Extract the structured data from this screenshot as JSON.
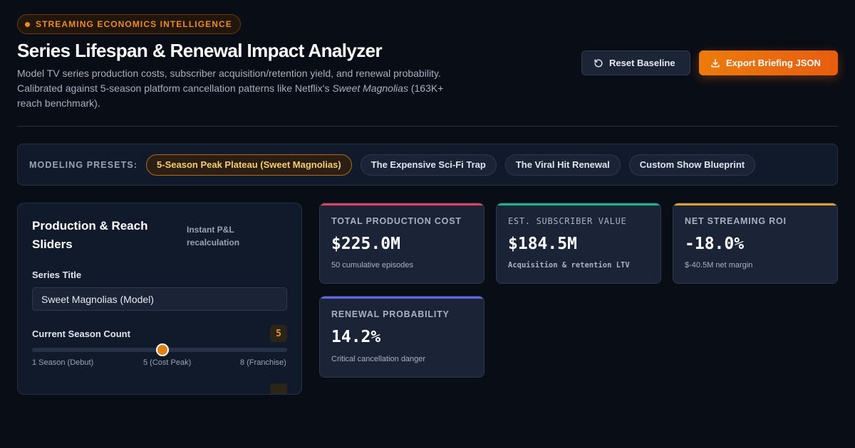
{
  "header": {
    "badge": "STREAMING ECONOMICS INTELLIGENCE",
    "title": "Series Lifespan & Renewal Impact Analyzer",
    "description_before": "Model TV series production costs, subscriber acquisition/retention yield, and renewal probability. Calibrated against 5-season platform cancellation patterns like Netflix's ",
    "description_em": "Sweet Magnolias",
    "description_after": " (163K+ reach benchmark).",
    "reset_label": "Reset Baseline",
    "export_label": "Export Briefing JSON"
  },
  "presets": {
    "label": "MODELING PRESETS:",
    "items": [
      {
        "label": "5-Season Peak Plateau (Sweet Magnolias)",
        "active": true
      },
      {
        "label": "The Expensive Sci-Fi Trap",
        "active": false
      },
      {
        "label": "The Viral Hit Renewal",
        "active": false
      },
      {
        "label": "Custom Show Blueprint",
        "active": false
      }
    ]
  },
  "controls": {
    "title": "Production & Reach Sliders",
    "note": "Instant P&L recalculation",
    "series_title_label": "Series Title",
    "series_title_value": "Sweet Magnolias (Model)",
    "season_label": "Current Season Count",
    "season_value": "5",
    "season_min": 1,
    "season_max": 8,
    "season_ticks": [
      "1 Season (Debut)",
      "5 (Cost Peak)",
      "8 (Franchise)"
    ]
  },
  "metrics": [
    {
      "label": "TOTAL PRODUCTION COST",
      "value": "$225.0M",
      "sub": "50 cumulative episodes",
      "accent": "#e0405e"
    },
    {
      "label": "EST. SUBSCRIBER VALUE",
      "value": "$184.5M",
      "sub": "Acquisition & retention LTV",
      "accent": "#1db48a"
    },
    {
      "label": "NET STREAMING ROI",
      "value": "-18.0%",
      "sub": "$-40.5M net margin",
      "accent": "#e0a02a"
    },
    {
      "label": "RENEWAL PROBABILITY",
      "value": "14.2%",
      "sub": "Critical cancellation danger",
      "accent": "#6466e8"
    }
  ]
}
